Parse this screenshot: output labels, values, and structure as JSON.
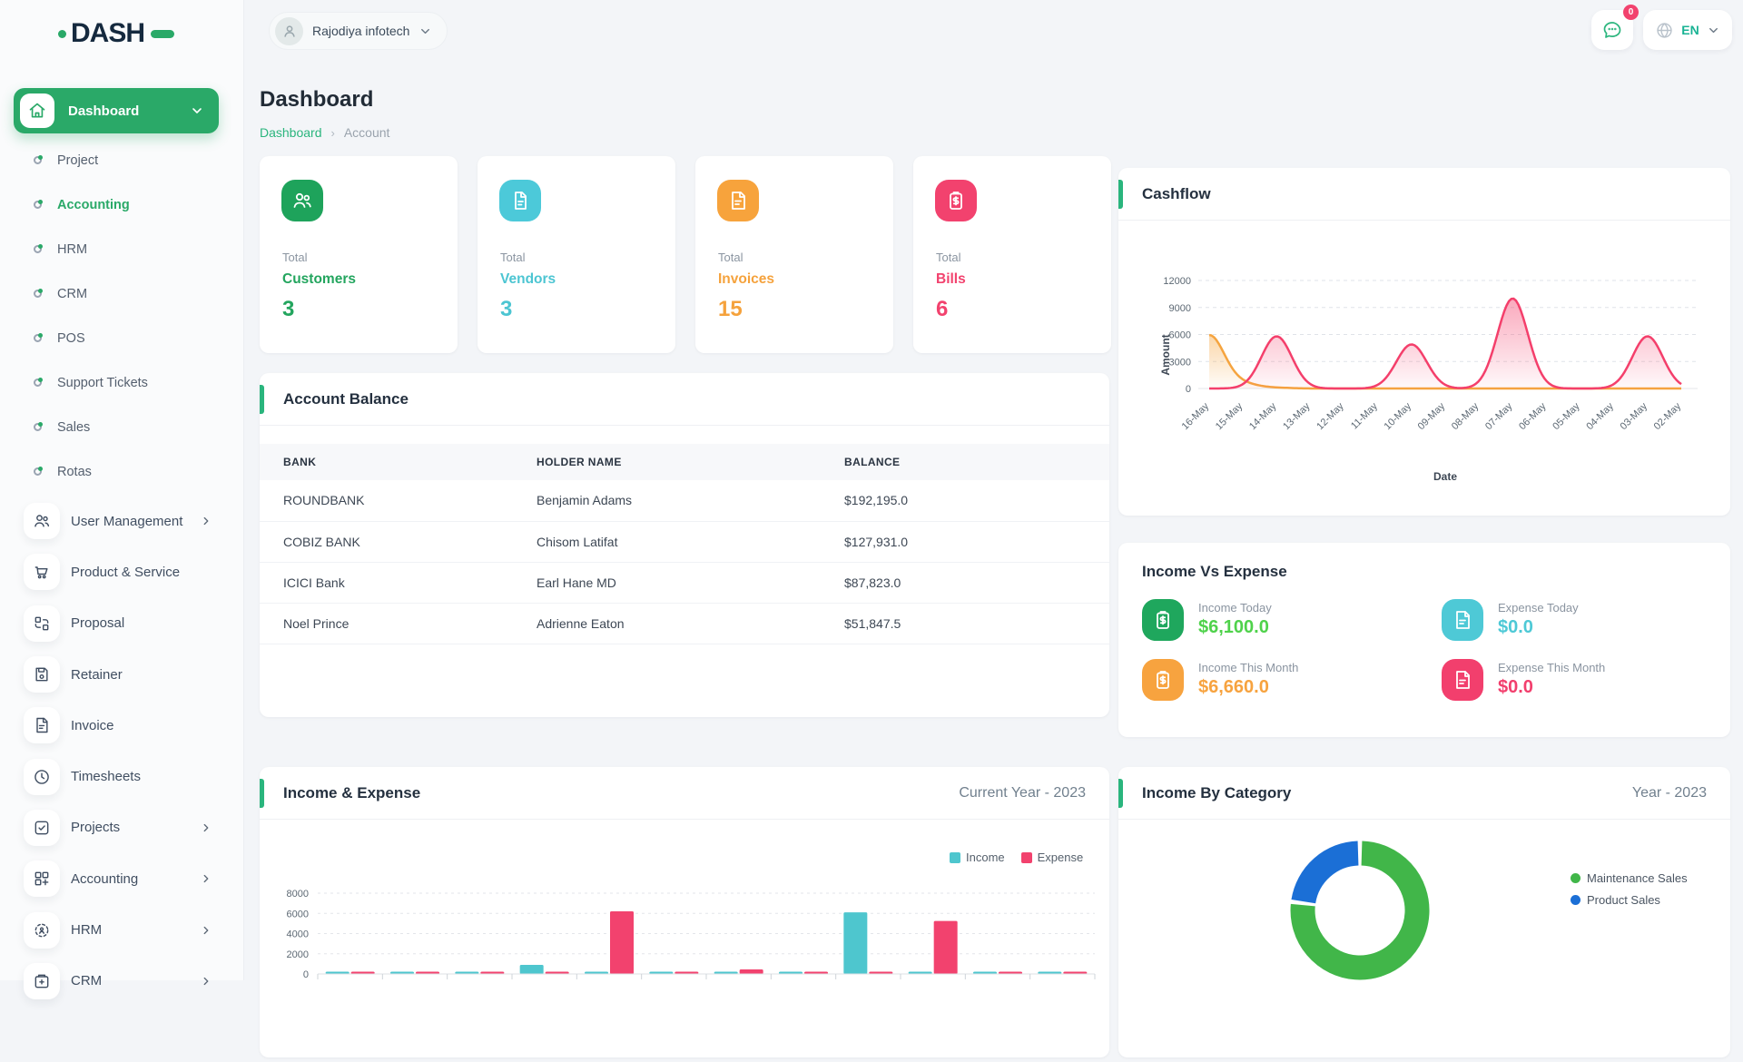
{
  "brand": {
    "name": "DASH"
  },
  "topbar": {
    "workspace": {
      "name": "Rajodiya infotech"
    },
    "messages_badge": "0",
    "language": "EN"
  },
  "sidebar": {
    "dashboard": {
      "label": "Dashboard"
    },
    "sub_items": [
      {
        "label": "Project",
        "active": false
      },
      {
        "label": "Accounting",
        "active": true
      },
      {
        "label": "HRM",
        "active": false
      },
      {
        "label": "CRM",
        "active": false
      },
      {
        "label": "POS",
        "active": false
      },
      {
        "label": "Support Tickets",
        "active": false
      },
      {
        "label": "Sales",
        "active": false
      },
      {
        "label": "Rotas",
        "active": false
      }
    ],
    "menu_items": [
      {
        "label": "User Management",
        "icon": "users",
        "chevron": true
      },
      {
        "label": "Product & Service",
        "icon": "cart",
        "chevron": false
      },
      {
        "label": "Proposal",
        "icon": "proposal",
        "chevron": false
      },
      {
        "label": "Retainer",
        "icon": "retainer",
        "chevron": false
      },
      {
        "label": "Invoice",
        "icon": "invoice",
        "chevron": false
      },
      {
        "label": "Timesheets",
        "icon": "clock",
        "chevron": false
      },
      {
        "label": "Projects",
        "icon": "check-square",
        "chevron": true
      },
      {
        "label": "Accounting",
        "icon": "grid-plus",
        "chevron": true
      },
      {
        "label": "HRM",
        "icon": "target",
        "chevron": true
      },
      {
        "label": "CRM",
        "icon": "card",
        "chevron": true
      }
    ]
  },
  "page": {
    "title": "Dashboard",
    "breadcrumb": {
      "root": "Dashboard",
      "current": "Account"
    }
  },
  "stats": [
    {
      "prefix": "Total",
      "label": "Customers",
      "value": "3",
      "color": "#23a55e",
      "icon_bg": "#1ea35b",
      "icon": "users"
    },
    {
      "prefix": "Total",
      "label": "Vendors",
      "value": "3",
      "color": "#4cc5d2",
      "icon_bg": "#4cc9d9",
      "icon": "doc"
    },
    {
      "prefix": "Total",
      "label": "Invoices",
      "value": "15",
      "color": "#f5a23c",
      "icon_bg": "#f7a33c",
      "icon": "invoice"
    },
    {
      "prefix": "Total",
      "label": "Bills",
      "value": "6",
      "color": "#f2426e",
      "icon_bg": "#f2426e",
      "icon": "bill"
    }
  ],
  "account_balance": {
    "title": "Account Balance",
    "columns": [
      "BANK",
      "HOLDER NAME",
      "BALANCE"
    ],
    "rows": [
      [
        "ROUNDBANK",
        "Benjamin Adams",
        "$192,195.0"
      ],
      [
        "COBIZ BANK",
        "Chisom Latifat",
        "$127,931.0"
      ],
      [
        "ICICI Bank",
        "Earl Hane MD",
        "$87,823.0"
      ],
      [
        "Noel Prince",
        "Adrienne Eaton",
        "$51,847.5"
      ]
    ]
  },
  "income_vs_expense": {
    "title": "Income Vs Expense",
    "tiles": [
      {
        "label": "Income Today",
        "value": "$6,100.0",
        "icon_bg": "#1fa75d",
        "value_color": "#4fd24b",
        "icon": "clipboard-dollar"
      },
      {
        "label": "Expense Today",
        "value": "$0.0",
        "icon_bg": "#4ec9d6",
        "value_color": "#4ec9d6",
        "icon": "doc-lines"
      },
      {
        "label": "Income This Month",
        "value": "$6,660.0",
        "icon_bg": "#f7a33f",
        "value_color": "#f7a33f",
        "icon": "clipboard-dollar"
      },
      {
        "label": "Expense This Month",
        "value": "$0.0",
        "icon_bg": "#f23f6d",
        "value_color": "#f23f6d",
        "icon": "doc-lines"
      }
    ]
  },
  "panels": {
    "cashflow": {
      "title": "Cashflow"
    },
    "income_expense": {
      "title": "Income & Expense",
      "period": "Current Year - 2023"
    },
    "income_by_category": {
      "title": "Income By Category",
      "period": "Year - 2023"
    }
  },
  "chart_data": [
    {
      "id": "cashflow",
      "type": "area",
      "title": "Cashflow",
      "xlabel": "Date",
      "ylabel": "Amount",
      "x": [
        "16-May",
        "15-May",
        "14-May",
        "13-May",
        "12-May",
        "11-May",
        "10-May",
        "09-May",
        "08-May",
        "07-May",
        "06-May",
        "05-May",
        "04-May",
        "03-May",
        "02-May"
      ],
      "ylim": [
        0,
        12000
      ],
      "yticks": [
        0,
        3000,
        6000,
        9000,
        12000
      ],
      "grid": true,
      "series": [
        {
          "name": "orange",
          "color": "#f5a43f",
          "values": [
            5900,
            500,
            80,
            0,
            0,
            0,
            0,
            0,
            0,
            0,
            0,
            0,
            0,
            0,
            0
          ]
        },
        {
          "name": "pink",
          "color": "#f43f6b",
          "values": [
            0,
            0,
            5800,
            0,
            0,
            0,
            4900,
            0,
            0,
            10000,
            0,
            0,
            0,
            5800,
            0
          ]
        }
      ]
    },
    {
      "id": "income_expense",
      "type": "bar",
      "title": "Income & Expense",
      "subtitle": "Current Year - 2023",
      "categories": [
        "",
        "",
        "",
        "",
        "",
        "",
        "",
        "",
        "",
        "",
        "",
        ""
      ],
      "ylim": [
        0,
        8000
      ],
      "yticks": [
        0,
        2000,
        4000,
        6000,
        8000
      ],
      "grid": true,
      "legend_position": "top-right",
      "series": [
        {
          "name": "Income",
          "color": "#4ec6ce",
          "values": [
            200,
            100,
            100,
            900,
            100,
            100,
            180,
            100,
            6100,
            100,
            100,
            100
          ]
        },
        {
          "name": "Expense",
          "color": "#f2426e",
          "values": [
            100,
            100,
            100,
            100,
            6200,
            100,
            450,
            100,
            100,
            5250,
            100,
            100
          ]
        }
      ]
    },
    {
      "id": "income_by_category",
      "type": "pie",
      "donut": true,
      "title": "Income By Category",
      "subtitle": "Year - 2023",
      "labels": [
        "Maintenance Sales",
        "Product Sales"
      ],
      "values_pct": [
        77,
        23
      ],
      "colors": [
        "#41b649",
        "#1b6fd6"
      ],
      "legend_position": "right"
    }
  ]
}
